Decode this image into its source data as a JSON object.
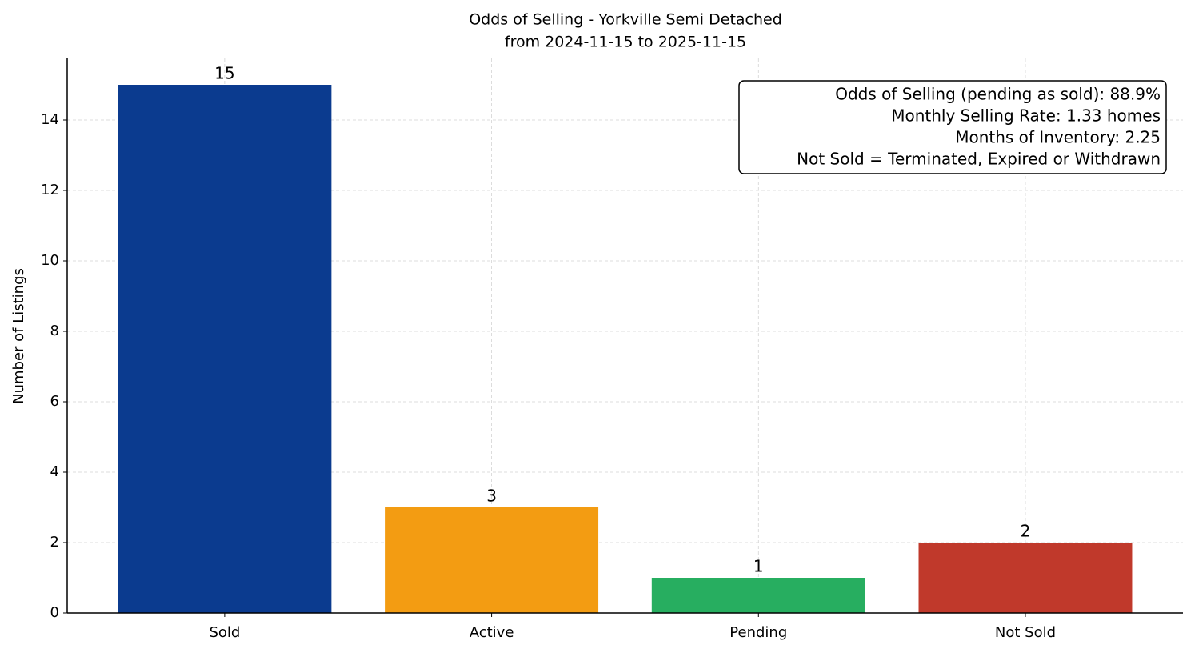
{
  "chart_data": {
    "type": "bar",
    "title": [
      "Odds of Selling - Yorkville Semi Detached",
      "from 2024-11-15 to 2025-11-15"
    ],
    "ylabel": "Number of Listings",
    "categories": [
      "Sold",
      "Active",
      "Pending",
      "Not Sold"
    ],
    "values": [
      15,
      3,
      1,
      2
    ],
    "colors": [
      "#0b3b8f",
      "#f39c12",
      "#27ae60",
      "#c0392b"
    ],
    "ylim": [
      0,
      15.75
    ],
    "yticks": [
      0,
      2,
      4,
      6,
      8,
      10,
      12,
      14
    ],
    "grid": true,
    "annotation": [
      "Odds of Selling (pending as sold): 88.9%",
      "Monthly Selling Rate: 1.33 homes",
      "Months of Inventory: 2.25",
      "Not Sold = Terminated, Expired or Withdrawn"
    ]
  }
}
